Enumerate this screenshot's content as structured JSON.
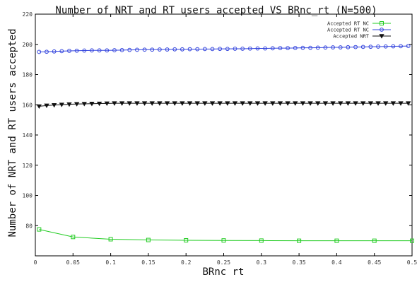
{
  "chart_data": {
    "type": "line",
    "title": "Number of NRT and RT users accepted VS BRnc_rt (N=500)",
    "xlabel": "BRnc rt",
    "ylabel": "Number of NRT and RT users accepted",
    "xlim": [
      0,
      0.5
    ],
    "ylim": [
      60,
      220
    ],
    "x_ticks": [
      0,
      0.05,
      0.1,
      0.15,
      0.2,
      0.25,
      0.3,
      0.35,
      0.4,
      0.45,
      0.5
    ],
    "x_tick_labels": [
      "0",
      "0.05",
      "0.1",
      "0.15",
      "0.2",
      "0.25",
      "0.3",
      "0.35",
      "0.4",
      "0.45",
      "0.5"
    ],
    "y_ticks": [
      80,
      100,
      120,
      140,
      160,
      180,
      200,
      220
    ],
    "y_tick_labels": [
      "80",
      "100",
      "120",
      "140",
      "160",
      "180",
      "200",
      "220"
    ],
    "legend_position": "top-right",
    "series": [
      {
        "name": "Accepted RT NC",
        "color": "#22cc22",
        "marker": "square",
        "x": [
          0.005,
          0.05,
          0.1,
          0.15,
          0.2,
          0.25,
          0.3,
          0.35,
          0.4,
          0.45,
          0.5
        ],
        "y": [
          77.5,
          72.5,
          71,
          70.5,
          70.3,
          70.2,
          70.1,
          70,
          70,
          70,
          70
        ]
      },
      {
        "name": "Accepted RT NC",
        "color": "#3344dd",
        "marker": "circle",
        "x": [
          0.005,
          0.015,
          0.025,
          0.035,
          0.045,
          0.055,
          0.065,
          0.075,
          0.085,
          0.095,
          0.105,
          0.115,
          0.125,
          0.135,
          0.145,
          0.155,
          0.165,
          0.175,
          0.185,
          0.195,
          0.205,
          0.215,
          0.225,
          0.235,
          0.245,
          0.255,
          0.265,
          0.275,
          0.285,
          0.295,
          0.305,
          0.315,
          0.325,
          0.335,
          0.345,
          0.355,
          0.365,
          0.375,
          0.385,
          0.395,
          0.405,
          0.415,
          0.425,
          0.435,
          0.445,
          0.455,
          0.465,
          0.475,
          0.485,
          0.495
        ],
        "y": [
          195,
          195.1,
          195.3,
          195.5,
          195.7,
          195.8,
          195.9,
          196,
          196,
          196,
          196.1,
          196.2,
          196.3,
          196.4,
          196.5,
          196.5,
          196.6,
          196.6,
          196.7,
          196.7,
          196.8,
          196.8,
          196.9,
          196.9,
          197,
          197,
          197.1,
          197.1,
          197.2,
          197.3,
          197.3,
          197.4,
          197.5,
          197.5,
          197.6,
          197.7,
          197.7,
          197.8,
          197.9,
          198,
          198,
          198.1,
          198.2,
          198.3,
          198.4,
          198.5,
          198.6,
          198.7,
          198.8,
          198.9
        ]
      },
      {
        "name": "Accepted NRT",
        "color": "#111111",
        "marker": "triangle-down",
        "x": [
          0.005,
          0.015,
          0.025,
          0.035,
          0.045,
          0.055,
          0.065,
          0.075,
          0.085,
          0.095,
          0.105,
          0.115,
          0.125,
          0.135,
          0.145,
          0.155,
          0.165,
          0.175,
          0.185,
          0.195,
          0.205,
          0.215,
          0.225,
          0.235,
          0.245,
          0.255,
          0.265,
          0.275,
          0.285,
          0.295,
          0.305,
          0.315,
          0.325,
          0.335,
          0.345,
          0.355,
          0.365,
          0.375,
          0.385,
          0.395,
          0.405,
          0.415,
          0.425,
          0.435,
          0.445,
          0.455,
          0.465,
          0.475,
          0.485,
          0.495
        ],
        "y": [
          159,
          159.5,
          159.8,
          160.1,
          160.3,
          160.5,
          160.6,
          160.7,
          160.8,
          160.9,
          161,
          161,
          161,
          161,
          161,
          161,
          161,
          161,
          161,
          161,
          161,
          161,
          161,
          161,
          161,
          161,
          161,
          161,
          161,
          161,
          161,
          161,
          161,
          161,
          161,
          161,
          161,
          161,
          161,
          161,
          161,
          161,
          161,
          161,
          161,
          161,
          161,
          161,
          161,
          161
        ]
      }
    ]
  }
}
